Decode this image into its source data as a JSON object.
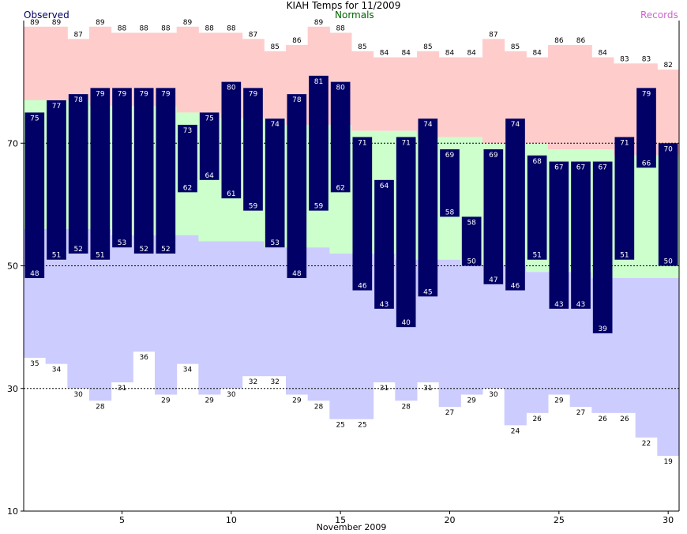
{
  "chart_data": {
    "type": "bar",
    "title": "KIAH Temps for 11/2009",
    "xlabel": "November 2009",
    "legend": [
      "Observed",
      "Normals",
      "Records"
    ],
    "colors": {
      "observed": "#000066",
      "normals": "#ccffcc",
      "records_high": "#ffcccc",
      "records_low": "#ccccff",
      "observed_label": "#ffffff"
    },
    "xlim": [
      1,
      30
    ],
    "ylim": [
      10,
      90
    ],
    "yticks": [
      10,
      30,
      50,
      70
    ],
    "xticks": [
      5,
      10,
      15,
      20,
      25,
      30
    ],
    "grid_lines": [
      30,
      50,
      70
    ],
    "days": [
      1,
      2,
      3,
      4,
      5,
      6,
      7,
      8,
      9,
      10,
      11,
      12,
      13,
      14,
      15,
      16,
      17,
      18,
      19,
      20,
      21,
      22,
      23,
      24,
      25,
      26,
      27,
      28,
      29,
      30
    ],
    "observed_high": [
      75,
      77,
      78,
      79,
      79,
      79,
      79,
      73,
      75,
      80,
      79,
      74,
      78,
      81,
      80,
      71,
      64,
      71,
      74,
      69,
      58,
      69,
      74,
      68,
      67,
      67,
      67,
      71,
      79,
      70
    ],
    "observed_low": [
      48,
      51,
      52,
      51,
      53,
      52,
      52,
      62,
      64,
      61,
      59,
      53,
      48,
      59,
      62,
      46,
      43,
      40,
      45,
      58,
      50,
      47,
      46,
      51,
      43,
      43,
      39,
      51,
      66,
      50
    ],
    "normal_high": [
      77,
      77,
      77,
      76,
      76,
      76,
      76,
      75,
      75,
      74,
      74,
      74,
      73,
      73,
      73,
      72,
      72,
      72,
      71,
      71,
      71,
      70,
      70,
      70,
      69,
      69,
      69,
      68,
      68,
      68
    ],
    "normal_low": [
      56,
      56,
      56,
      56,
      55,
      55,
      55,
      55,
      54,
      54,
      54,
      53,
      53,
      53,
      52,
      52,
      52,
      51,
      51,
      51,
      50,
      50,
      50,
      49,
      49,
      49,
      48,
      48,
      48,
      48
    ],
    "record_high": [
      89,
      89,
      87,
      89,
      88,
      88,
      88,
      89,
      88,
      88,
      87,
      85,
      86,
      89,
      88,
      85,
      84,
      84,
      85,
      84,
      84,
      87,
      85,
      84,
      86,
      86,
      84,
      83,
      83,
      82
    ],
    "record_low": [
      35,
      34,
      30,
      28,
      31,
      36,
      29,
      34,
      29,
      30,
      32,
      32,
      29,
      28,
      25,
      25,
      31,
      28,
      31,
      27,
      29,
      30,
      24,
      26,
      29,
      27,
      26,
      26,
      22,
      19
    ]
  }
}
